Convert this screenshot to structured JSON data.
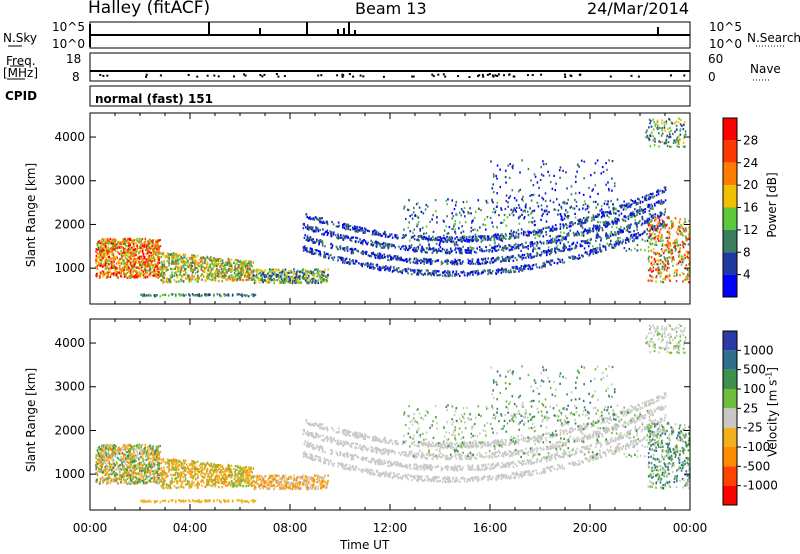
{
  "header": {
    "station": "Halley (fitACF)",
    "beam": "Beam 13",
    "date": "24/Mar/2014"
  },
  "top_panels": {
    "nsky_label": "N.Sky",
    "nsearch_label": "N.Search",
    "nsky_ticks": [
      "10^5",
      "10^0"
    ],
    "nsearch_ticks": [
      "10^5",
      "10^0"
    ],
    "freq_label_1": "Freq.",
    "freq_label_2": "[MHz]",
    "freq_ticks": [
      "18",
      "8"
    ],
    "nave_label": "Nave",
    "nave_ticks": [
      "60",
      "0"
    ],
    "cpid_label": "CPID",
    "cpid_value": "normal (fast) 151"
  },
  "colors": {
    "power": [
      "#0000ff",
      "#21399e",
      "#3b7d5f",
      "#5cc83a",
      "#f0c000",
      "#ff7c00",
      "#ff3a00",
      "#ff0000"
    ],
    "velocity": [
      "#2a3aa6",
      "#2f6e8c",
      "#3f8f4d",
      "#6dbe3c",
      "#c8c8c8",
      "#f0b020",
      "#ff8c00",
      "#ff4400",
      "#ff0000"
    ],
    "velocity_ground": "#c9c9c6"
  },
  "chart_data": [
    {
      "type": "heatmap",
      "name": "power",
      "ylabel": "Slant Range [km]",
      "xlabel": "Time UT",
      "xlim": [
        "00:00",
        "24:00"
      ],
      "ylim": [
        180,
        4550
      ],
      "x_ticks": [
        "00:00",
        "04:00",
        "08:00",
        "12:00",
        "16:00",
        "20:00",
        "00:00"
      ],
      "y_ticks": [
        1000,
        2000,
        3000,
        4000
      ],
      "colorbar_label": "Power [dB]",
      "colorbar_ticks": [
        "4",
        "8",
        "12",
        "16",
        "20",
        "24",
        "28"
      ],
      "colorbar_range": [
        0,
        32
      ],
      "grid": false
    },
    {
      "type": "heatmap",
      "name": "velocity",
      "ylabel": "Slant Range [km]",
      "xlabel": "Time UT",
      "xlim": [
        "00:00",
        "24:00"
      ],
      "ylim": [
        180,
        4550
      ],
      "x_ticks": [
        "00:00",
        "04:00",
        "08:00",
        "12:00",
        "16:00",
        "20:00",
        "00:00"
      ],
      "y_ticks": [
        1000,
        2000,
        3000,
        4000
      ],
      "colorbar_label": "Velocity [m s-1]",
      "colorbar_ticks": [
        "1000",
        "500",
        "100",
        "25",
        "-25",
        "-100",
        "-500",
        "-1000"
      ],
      "grid": false
    }
  ]
}
